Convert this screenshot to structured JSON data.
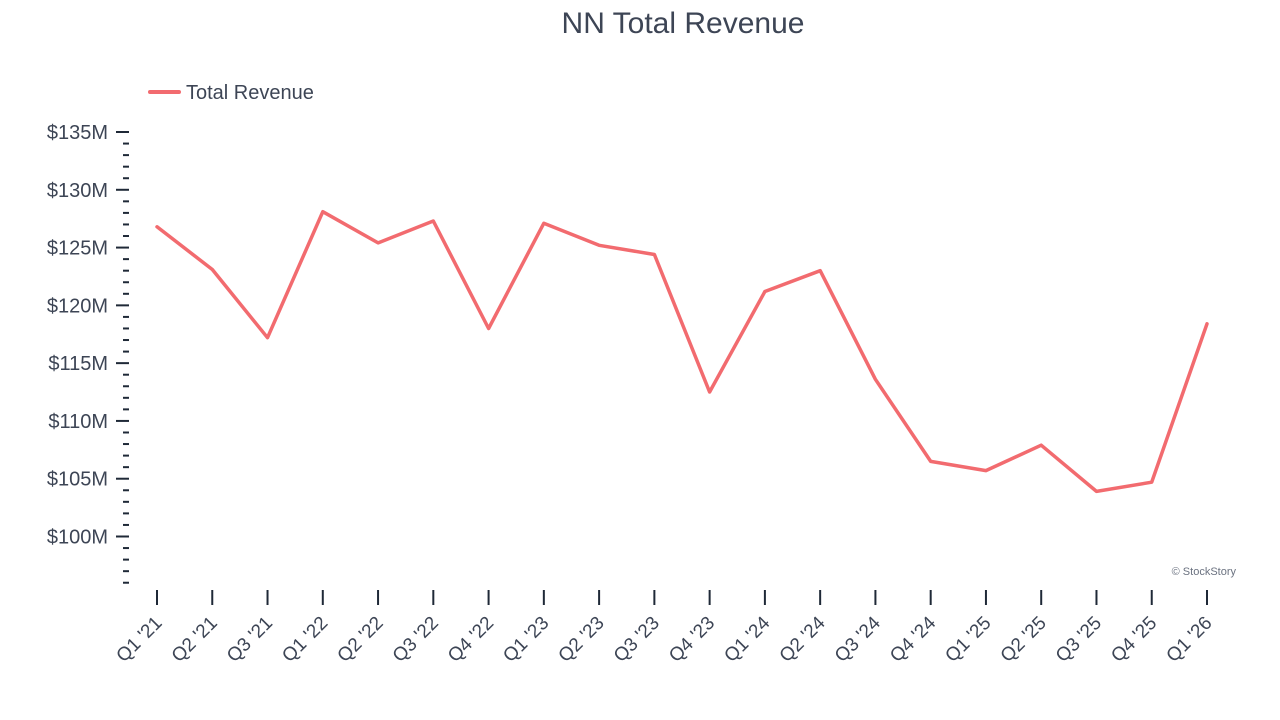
{
  "chart_data": {
    "type": "line",
    "title": "NN Total Revenue",
    "xlabel": "",
    "ylabel": "",
    "ylim": [
      95.5,
      135
    ],
    "yticks": [
      100,
      105,
      110,
      115,
      120,
      125,
      130,
      135
    ],
    "ytick_labels": [
      "$100M",
      "$105M",
      "$110M",
      "$115M",
      "$120M",
      "$125M",
      "$130M",
      "$135M"
    ],
    "categories": [
      "Q1 '21",
      "Q2 '21",
      "Q3 '21",
      "Q1 '22",
      "Q2 '22",
      "Q3 '22",
      "Q4 '22",
      "Q1 '23",
      "Q2 '23",
      "Q3 '23",
      "Q4 '23",
      "Q1 '24",
      "Q2 '24",
      "Q3 '24",
      "Q4 '24",
      "Q1 '25",
      "Q2 '25",
      "Q3 '25",
      "Q4 '25",
      "Q1 '26"
    ],
    "series": [
      {
        "name": "Total Revenue",
        "color": "#f26b6f",
        "values": [
          126.8,
          123.1,
          117.2,
          128.1,
          125.4,
          127.3,
          118.0,
          127.1,
          125.2,
          124.4,
          112.5,
          121.2,
          123.0,
          113.6,
          106.5,
          105.7,
          107.9,
          103.9,
          104.7,
          118.4
        ]
      }
    ],
    "legend": "top-left",
    "grid": false
  },
  "credit": "© StockStory",
  "colors": {
    "text": "#3d4555",
    "axis": "#1f2937",
    "series": "#f26b6f"
  }
}
